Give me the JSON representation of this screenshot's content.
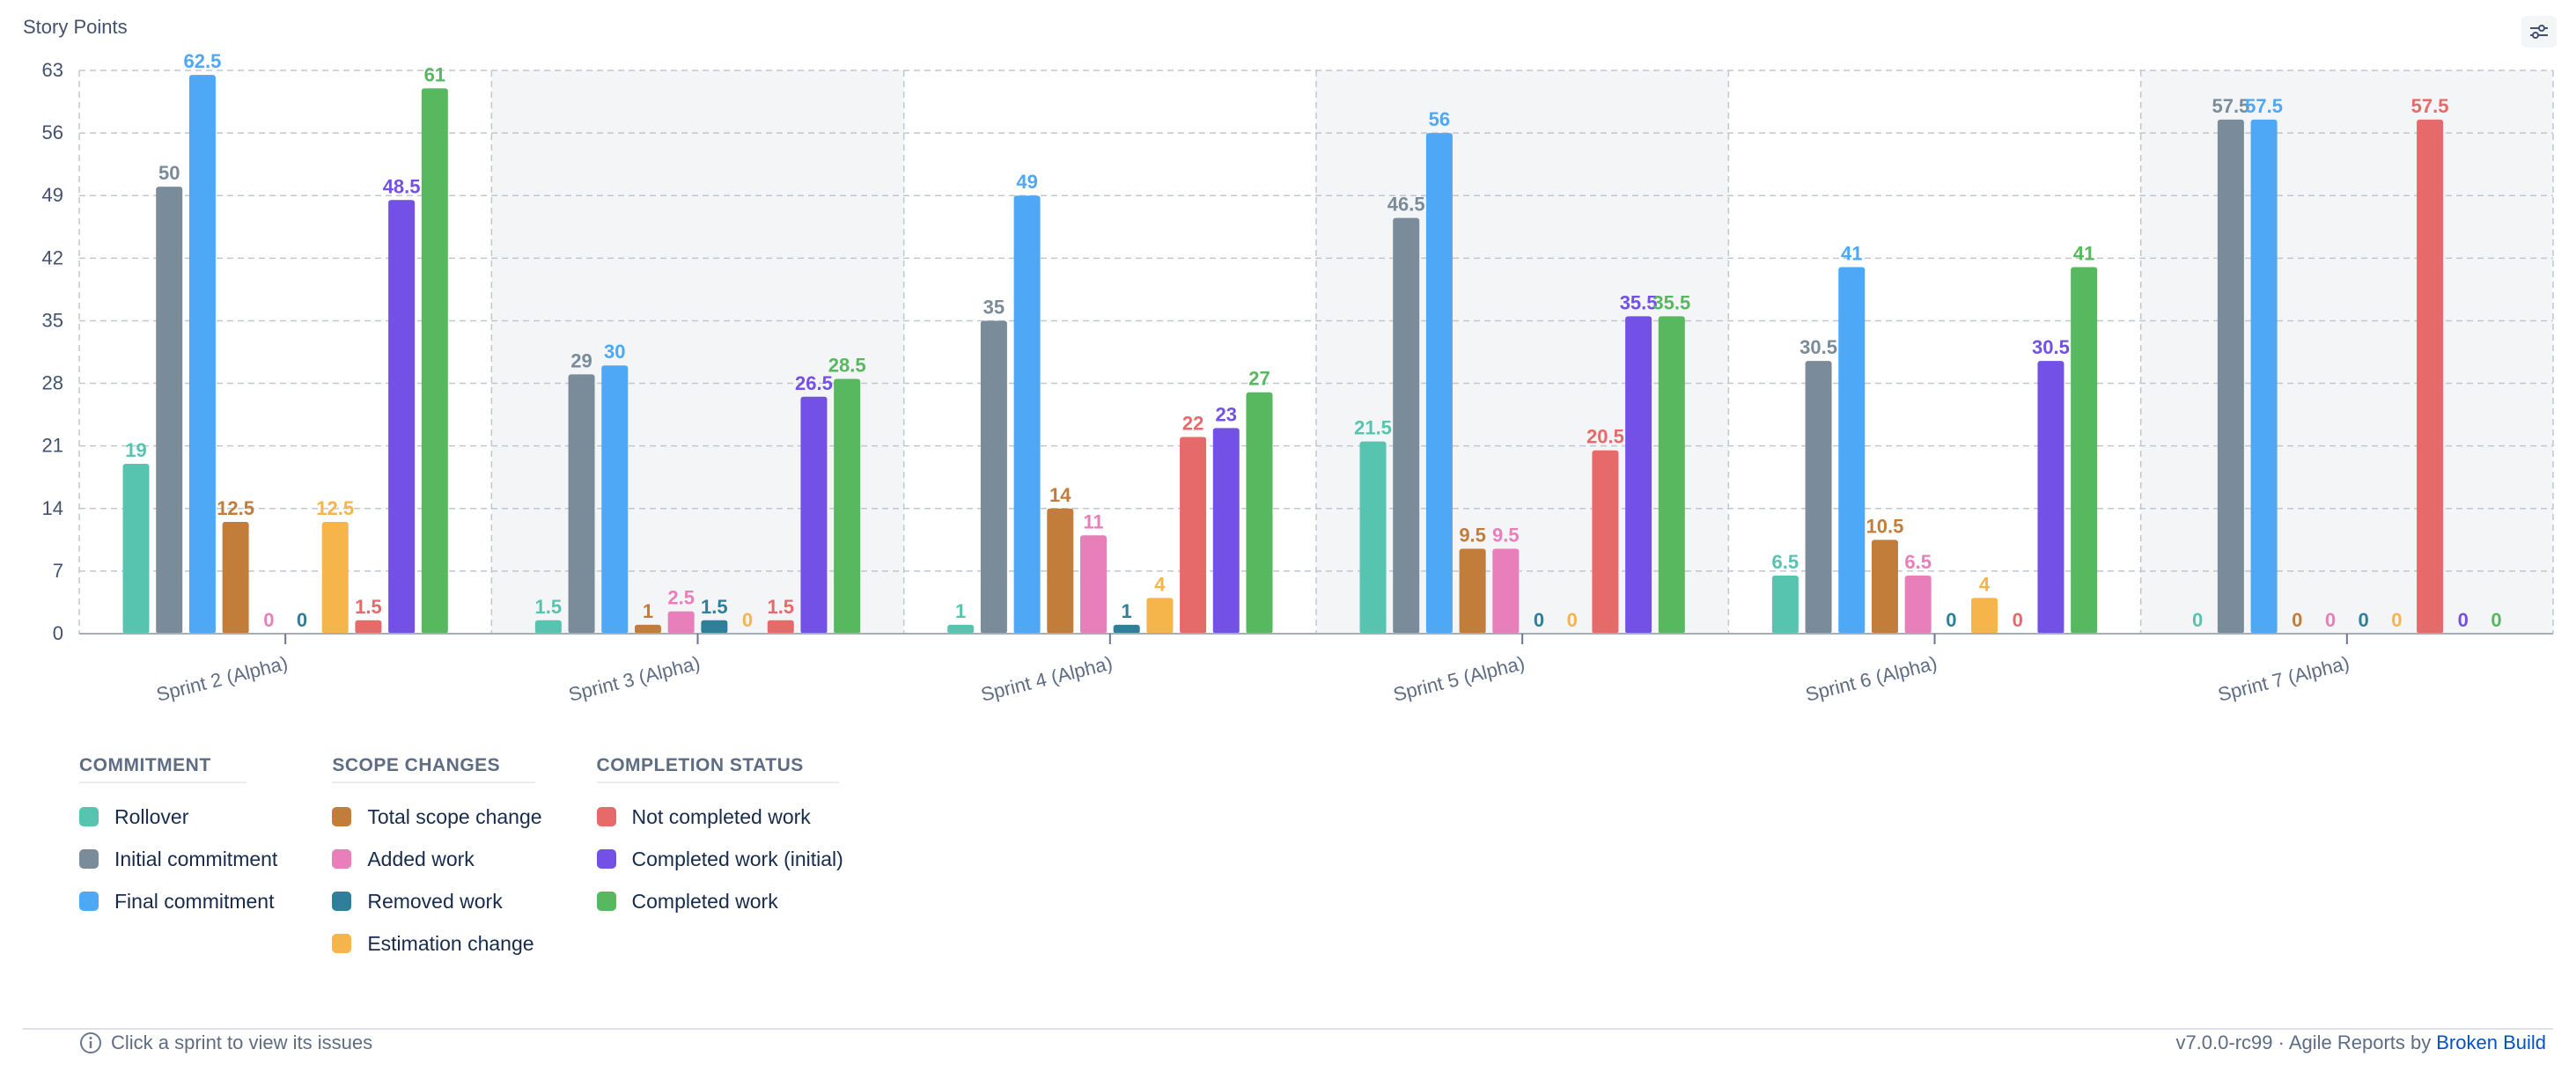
{
  "header": {
    "yaxis_title": "Story Points",
    "settings_icon": "sliders-icon"
  },
  "colors": {
    "rollover": "#57c4b0",
    "initial": "#7a8b99",
    "final": "#4fa8f5",
    "total_scope": "#c27d3a",
    "added": "#e87fba",
    "removed": "#2f7f9a",
    "estimation": "#f5b54b",
    "not_completed": "#e76a6a",
    "completed_initial": "#7350e6",
    "completed": "#57b85f",
    "grid": "#c1c7d0",
    "band": "#f4f5f7",
    "axis_text": "#42526e"
  },
  "chart_data": {
    "type": "bar",
    "categories": [
      "Sprint 2 (Alpha)",
      "Sprint 3 (Alpha)",
      "Sprint 4 (Alpha)",
      "Sprint 5 (Alpha)",
      "Sprint 6 (Alpha)",
      "Sprint 7 (Alpha)"
    ],
    "ylim": [
      0,
      63
    ],
    "yticks": [
      0,
      7,
      14,
      21,
      28,
      35,
      42,
      49,
      56,
      63
    ],
    "ylabel": "Story Points",
    "grid": true,
    "legend_position": "bottom-left",
    "series": [
      {
        "name": "Rollover",
        "color_key": "rollover",
        "values": [
          19,
          1.5,
          1,
          21.5,
          6.5,
          0
        ],
        "labels": [
          "19",
          "1.5",
          "1",
          "21.5",
          "6.5",
          "0"
        ]
      },
      {
        "name": "Initial commitment",
        "color_key": "initial",
        "values": [
          50,
          29,
          35,
          46.5,
          30.5,
          57.5
        ],
        "labels": [
          "50",
          "29",
          "35",
          "46.5",
          "30.5",
          "57.5"
        ]
      },
      {
        "name": "Final commitment",
        "color_key": "final",
        "values": [
          62.5,
          30,
          49,
          56,
          41,
          57.5
        ],
        "labels": [
          "62.5",
          "30",
          "49",
          "56",
          "41",
          "57.5"
        ]
      },
      {
        "name": "Total scope change",
        "color_key": "total_scope",
        "values": [
          12.5,
          1,
          14,
          9.5,
          10.5,
          0
        ],
        "labels": [
          "12.5",
          "1",
          "14",
          "9.5",
          "10.5",
          "0"
        ]
      },
      {
        "name": "Added work",
        "color_key": "added",
        "values": [
          0,
          2.5,
          11,
          9.5,
          6.5,
          0
        ],
        "labels": [
          "0",
          "2.5",
          "11",
          "9.5",
          "6.5",
          "0"
        ]
      },
      {
        "name": "Removed work",
        "color_key": "removed",
        "values": [
          0,
          1.5,
          1,
          0,
          0,
          0
        ],
        "labels": [
          "0",
          "1.5",
          "1",
          "0",
          "0",
          "0"
        ]
      },
      {
        "name": "Estimation change",
        "color_key": "estimation",
        "values": [
          12.5,
          0,
          4,
          0,
          4,
          0
        ],
        "labels": [
          "12.5",
          "0",
          "4",
          "0",
          "4",
          "0"
        ]
      },
      {
        "name": "Not completed work",
        "color_key": "not_completed",
        "values": [
          1.5,
          1.5,
          22,
          20.5,
          0,
          57.5
        ],
        "labels": [
          "1.5",
          "1.5",
          "22",
          "20.5",
          "0",
          "57.5"
        ]
      },
      {
        "name": "Completed work (initial)",
        "color_key": "completed_initial",
        "values": [
          48.5,
          26.5,
          23,
          35.5,
          30.5,
          0
        ],
        "labels": [
          "48.5",
          "26.5",
          "23",
          "35.5",
          "30.5",
          "0"
        ]
      },
      {
        "name": "Completed work",
        "color_key": "completed",
        "values": [
          61,
          28.5,
          27,
          35.5,
          41,
          0
        ],
        "labels": [
          "61",
          "28.5",
          "27",
          "35.5",
          "41",
          "0"
        ]
      }
    ]
  },
  "legend": {
    "groups": [
      {
        "title": "COMMITMENT",
        "items": [
          {
            "label": "Rollover",
            "color_key": "rollover"
          },
          {
            "label": "Initial commitment",
            "color_key": "initial"
          },
          {
            "label": "Final commitment",
            "color_key": "final"
          }
        ]
      },
      {
        "title": "SCOPE CHANGES",
        "items": [
          {
            "label": "Total scope change",
            "color_key": "total_scope"
          },
          {
            "label": "Added work",
            "color_key": "added"
          },
          {
            "label": "Removed work",
            "color_key": "removed"
          },
          {
            "label": "Estimation change",
            "color_key": "estimation"
          }
        ]
      },
      {
        "title": "COMPLETION STATUS",
        "items": [
          {
            "label": "Not completed work",
            "color_key": "not_completed"
          },
          {
            "label": "Completed work (initial)",
            "color_key": "completed_initial"
          },
          {
            "label": "Completed work",
            "color_key": "completed"
          }
        ]
      }
    ]
  },
  "footer": {
    "hint": "Click a sprint to view its issues",
    "hint_icon": "info-icon",
    "version": "v7.0.0-rc99 · Agile Reports by",
    "brand_link": "Broken Build"
  }
}
